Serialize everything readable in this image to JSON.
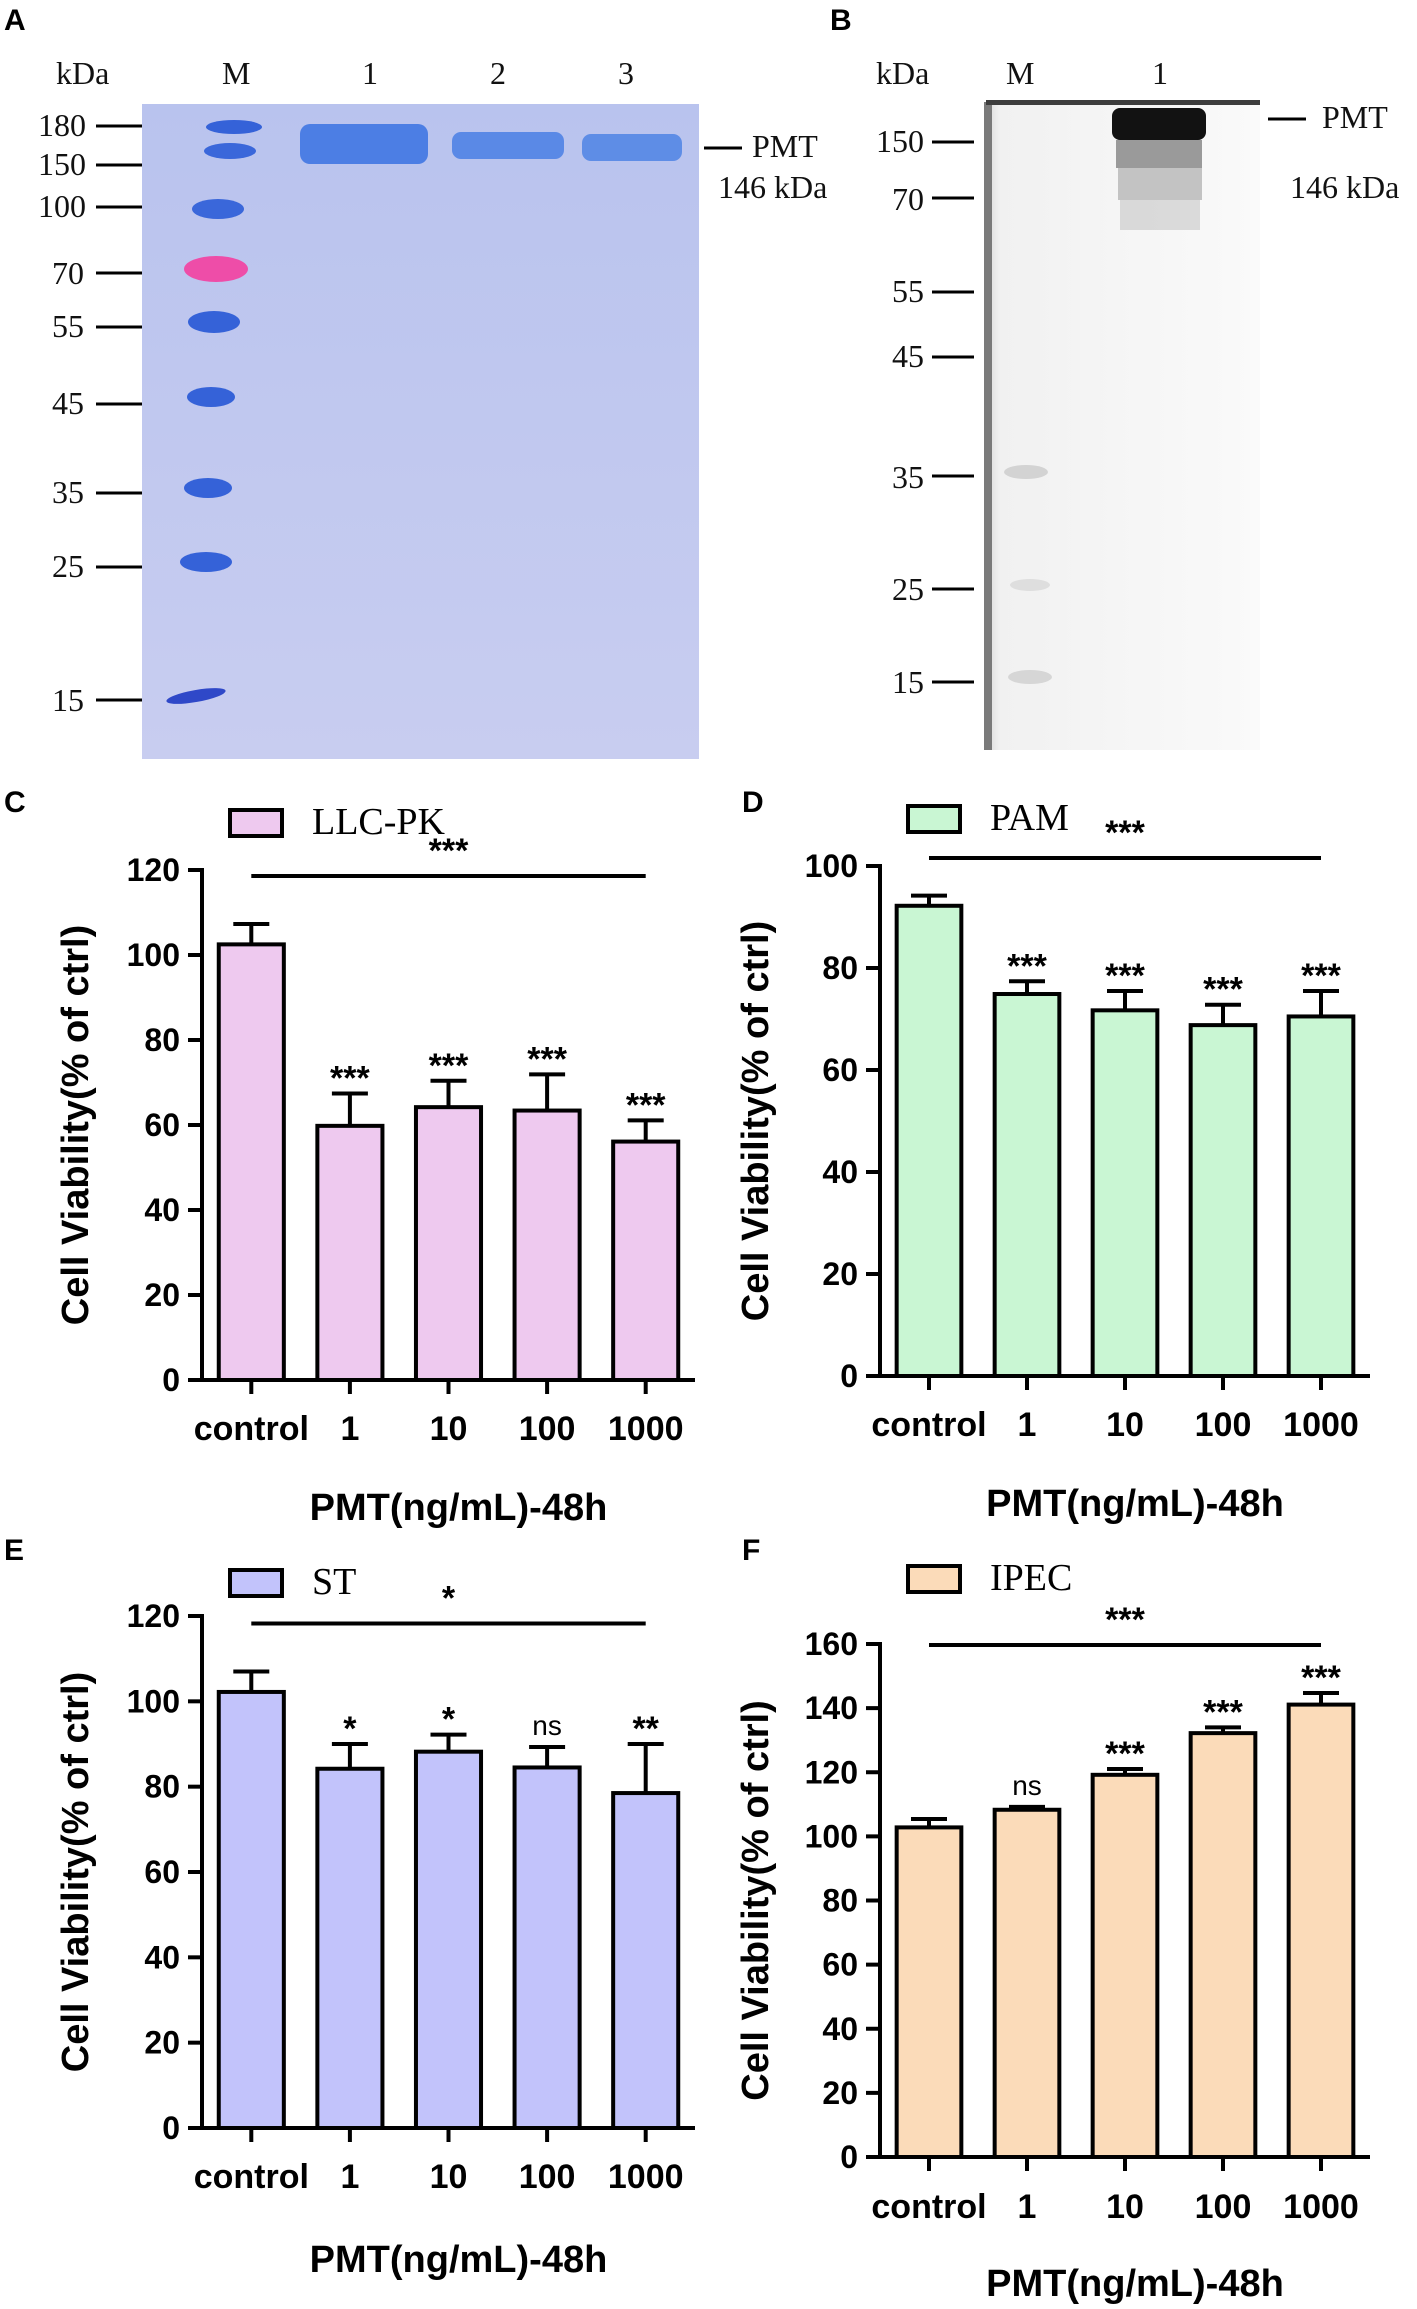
{
  "panels": {
    "A": "A",
    "B": "B",
    "C": "C",
    "D": "D",
    "E": "E",
    "F": "F"
  },
  "gel_a": {
    "kda_label": "kDa",
    "lanes": [
      "M",
      "1",
      "2",
      "3"
    ],
    "markers": [
      "180",
      "150",
      "100",
      "70",
      "55",
      "45",
      "35",
      "25",
      "15"
    ],
    "band_label": "PMT",
    "band_size": "146 kDa",
    "colors": {
      "background": "#c8cfee",
      "band": "#3f6fe0",
      "pink": "#ee4da8"
    }
  },
  "blot_b": {
    "kda_label": "kDa",
    "lanes": [
      "M",
      "1"
    ],
    "markers": [
      "150",
      "70",
      "55",
      "45",
      "35",
      "25",
      "15"
    ],
    "band_label": "PMT",
    "band_size": "146 kDa"
  },
  "chart_data": [
    {
      "id": "C",
      "type": "bar",
      "legend": "LLC-PK",
      "color": "#eec9ef",
      "categories": [
        "control",
        "1",
        "10",
        "100",
        "1000"
      ],
      "values": [
        102.5,
        59.8,
        64.2,
        63.4,
        56.1
      ],
      "errors": [
        4.8,
        7.6,
        6.2,
        8.5,
        5.0
      ],
      "ylim": [
        0,
        120
      ],
      "yticks": [
        "0",
        "20",
        "40",
        "60",
        "80",
        "100",
        "120"
      ],
      "ylabel": "Cell Viability(% of ctrl)",
      "xlabel": "PMT(ng/mL)-48h",
      "bar_sig": [
        "",
        "***",
        "***",
        "***",
        "***"
      ],
      "overall_sig": "***"
    },
    {
      "id": "D",
      "type": "bar",
      "legend": "PAM",
      "color": "#c9f6d3",
      "categories": [
        "control",
        "1",
        "10",
        "100",
        "1000"
      ],
      "values": [
        92.2,
        74.9,
        71.7,
        68.8,
        70.5
      ],
      "errors": [
        2.0,
        2.5,
        3.8,
        4.0,
        5.0
      ],
      "ylim": [
        0,
        100
      ],
      "yticks": [
        "0",
        "20",
        "40",
        "60",
        "80",
        "100"
      ],
      "ylabel": "Cell Viability(% of ctrl)",
      "xlabel": "PMT(ng/mL)-48h",
      "bar_sig": [
        "",
        "***",
        "***",
        "***",
        "***"
      ],
      "overall_sig": "***"
    },
    {
      "id": "E",
      "type": "bar",
      "legend": "ST",
      "color": "#c2c3fb",
      "categories": [
        "control",
        "1",
        "10",
        "100",
        "1000"
      ],
      "values": [
        102.2,
        84.2,
        88.2,
        84.5,
        78.5
      ],
      "errors": [
        4.8,
        5.8,
        4.0,
        4.8,
        11.5
      ],
      "ylim": [
        0,
        120
      ],
      "yticks": [
        "0",
        "20",
        "40",
        "60",
        "80",
        "100",
        "120"
      ],
      "ylabel": "Cell Viability(% of ctrl)",
      "xlabel": "PMT(ng/mL)-48h",
      "bar_sig": [
        "",
        "*",
        "*",
        "ns",
        "**"
      ],
      "overall_sig": "*"
    },
    {
      "id": "F",
      "type": "bar",
      "legend": "IPEC",
      "color": "#fbdbb9",
      "categories": [
        "control",
        "1",
        "10",
        "100",
        "1000"
      ],
      "values": [
        102.8,
        108.3,
        119.2,
        132.2,
        141.1
      ],
      "errors": [
        2.6,
        0.9,
        1.8,
        1.8,
        3.6
      ],
      "ylim": [
        0,
        160
      ],
      "yticks": [
        "0",
        "20",
        "40",
        "60",
        "80",
        "100",
        "120",
        "140",
        "160"
      ],
      "ylabel": "Cell Viability(% of ctrl)",
      "xlabel": "PMT(ng/mL)-48h",
      "bar_sig": [
        "",
        "ns",
        "***",
        "***",
        "***"
      ],
      "overall_sig": "***"
    }
  ]
}
